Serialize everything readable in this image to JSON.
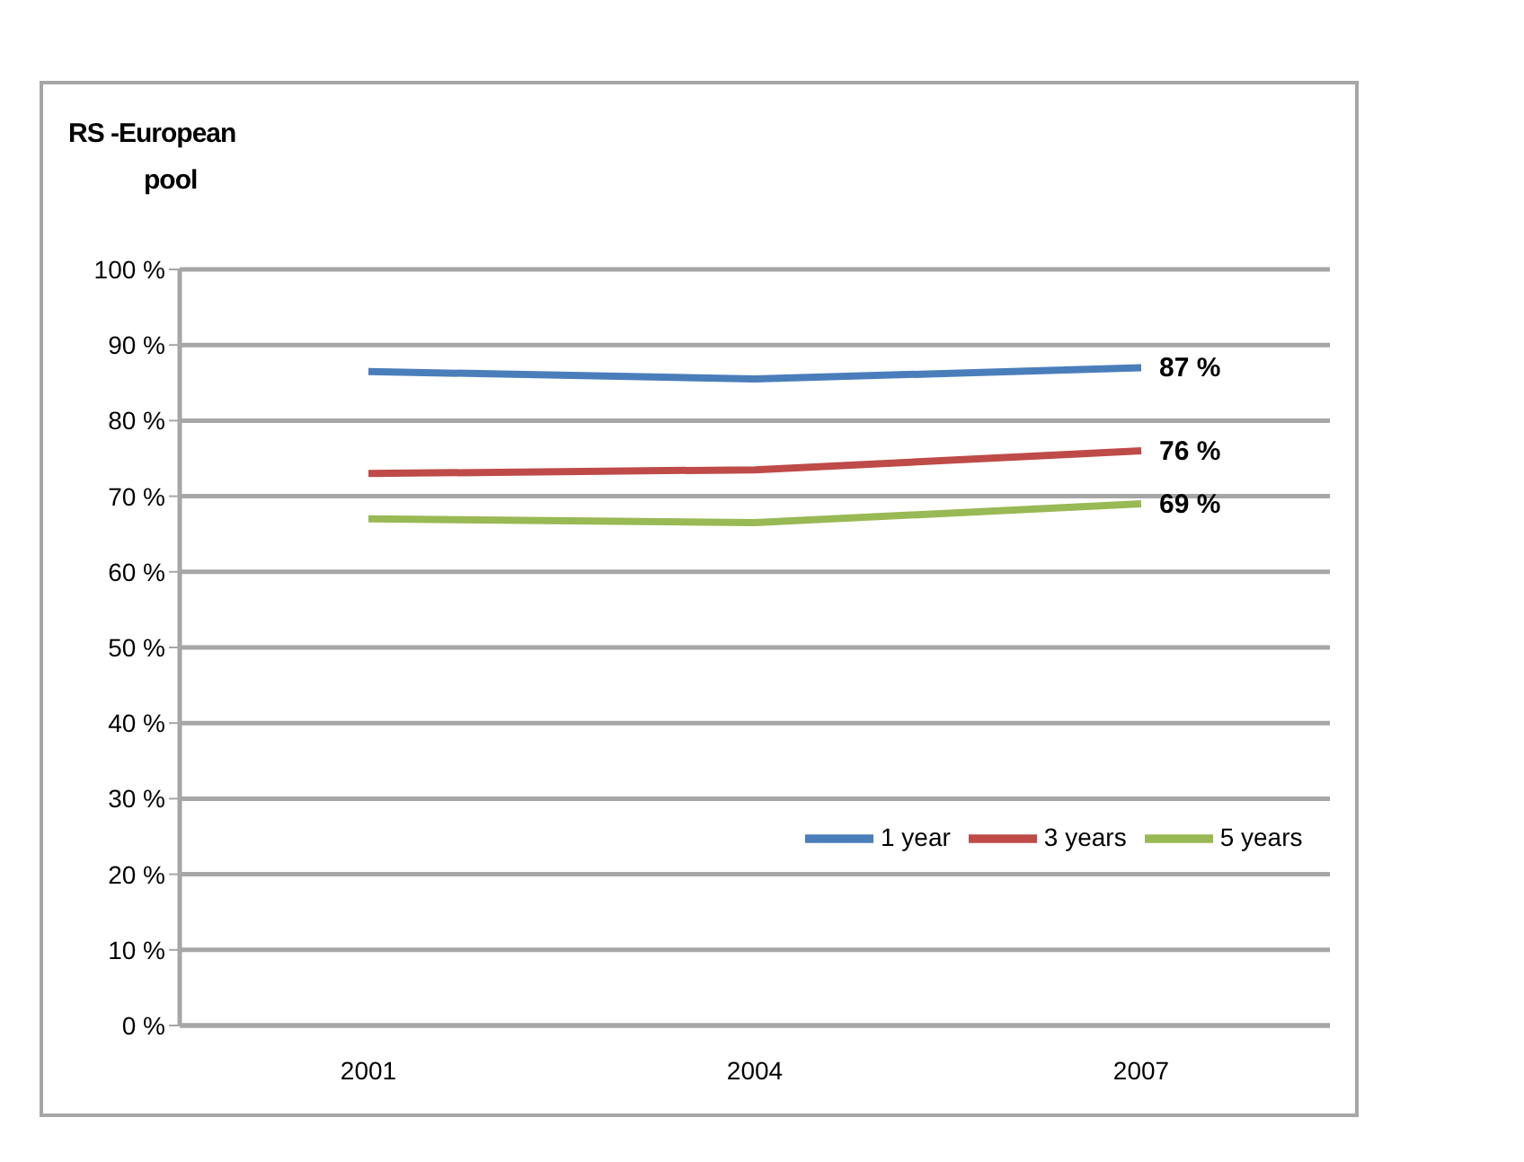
{
  "chart_data": {
    "type": "line",
    "title": "RS -European pool",
    "categories": [
      "2001",
      "2004",
      "2007"
    ],
    "series": [
      {
        "name": "1 year",
        "color": "#4a7ebb",
        "values": [
          86.5,
          85.5,
          87
        ],
        "value_labels": [
          null,
          null,
          "87 %"
        ]
      },
      {
        "name": "3 years",
        "color": "#be4b48",
        "values": [
          73,
          73.5,
          76
        ],
        "value_labels": [
          null,
          null,
          "76 %"
        ]
      },
      {
        "name": "5 years",
        "color": "#98b954",
        "values": [
          67,
          66.5,
          69
        ],
        "value_labels": [
          null,
          null,
          "69 %"
        ]
      }
    ],
    "ylim": [
      0,
      100
    ],
    "yticks": [
      {
        "value": 0,
        "label": "0 %"
      },
      {
        "value": 10,
        "label": "10 %"
      },
      {
        "value": 20,
        "label": "20 %"
      },
      {
        "value": 30,
        "label": "30 %"
      },
      {
        "value": 40,
        "label": "40 %"
      },
      {
        "value": 50,
        "label": "50 %"
      },
      {
        "value": 60,
        "label": "60 %"
      },
      {
        "value": 70,
        "label": "70 %"
      },
      {
        "value": 80,
        "label": "80 %"
      },
      {
        "value": 90,
        "label": "90 %"
      },
      {
        "value": 100,
        "label": "100 %"
      }
    ],
    "grid": "y",
    "legend": "bottom right",
    "marker": "none",
    "line_style": "solid"
  }
}
